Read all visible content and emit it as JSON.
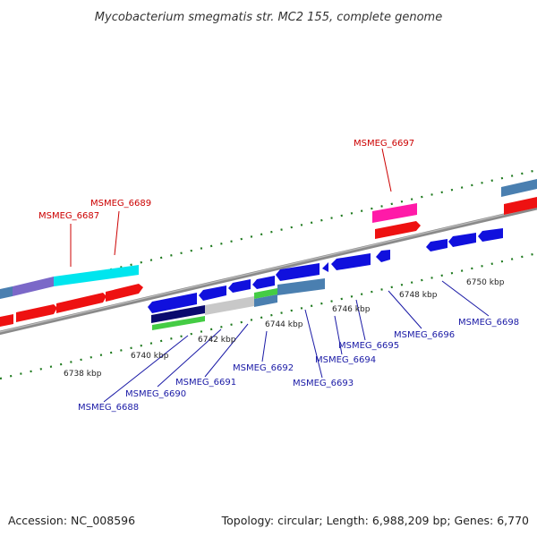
{
  "title": "Mycobacterium smegmatis str. MC2 155, complete genome",
  "footer": {
    "accession": "Accession: NC_008596",
    "summary": "Topology: circular; Length: 6,988,209 bp; Genes: 6,770"
  },
  "scale_labels": [
    "6738 kbp",
    "6740 kbp",
    "6742 kbp",
    "6744 kbp",
    "6746 kbp",
    "6748 kbp",
    "6750 kbp"
  ],
  "gene_labels_forward": [
    "MSMEG_6687",
    "MSMEG_6689",
    "MSMEG_6697"
  ],
  "gene_labels_reverse": [
    "MSMEG_6688",
    "MSMEG_6690",
    "MSMEG_6691",
    "MSMEG_6692",
    "MSMEG_6693",
    "MSMEG_6694",
    "MSMEG_6695",
    "MSMEG_6696",
    "MSMEG_6698"
  ],
  "colors": {
    "forward_label": "#cc0000",
    "reverse_label": "#1a1aa6",
    "tick": "#1f7a1f",
    "backbone": "#808080"
  }
}
